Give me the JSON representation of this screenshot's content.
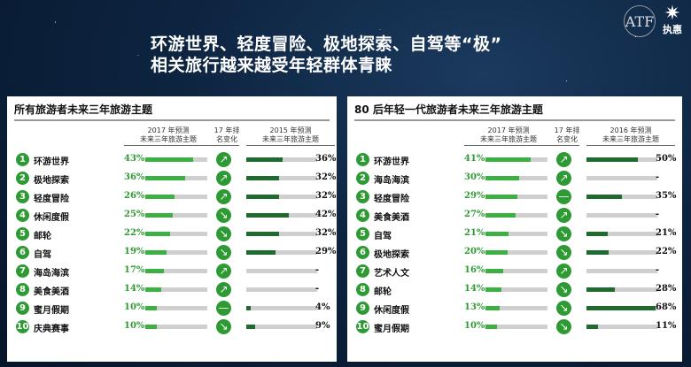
{
  "title": {
    "line1": "环游世界、轻度冒险、极地探索、自驾等“极”",
    "line2": "相关旅行越来越受年轻群体青睐"
  },
  "logo": {
    "atf": "ATF",
    "brand": "执惠",
    "star_icon": "star-icon"
  },
  "colors": {
    "accent": "#2e9a34",
    "bar_light": "#3cb043",
    "bar_dark": "#1f6a2e",
    "bar_bg": "#cfcfcf"
  },
  "left": {
    "heading": "所有旅游者未来三年旅游主题",
    "col1": "2017 年预测\n未来三年旅游主题",
    "col2": "17 年排\n名变化",
    "col3": "2015 年预测\n未来三年旅游主题",
    "rows": [
      {
        "num": "1",
        "name": "环游世界",
        "pct": "43%",
        "v": 43,
        "change": "up",
        "pct2": "36%",
        "v2": 36
      },
      {
        "num": "2",
        "name": "极地探索",
        "pct": "36%",
        "v": 36,
        "change": "up",
        "pct2": "32%",
        "v2": 32
      },
      {
        "num": "3",
        "name": "轻度冒险",
        "pct": "26%",
        "v": 26,
        "change": "up",
        "pct2": "32%",
        "v2": 32
      },
      {
        "num": "4",
        "name": "休闲度假",
        "pct": "25%",
        "v": 25,
        "change": "down",
        "pct2": "42%",
        "v2": 42
      },
      {
        "num": "5",
        "name": "邮轮",
        "pct": "22%",
        "v": 22,
        "change": "down",
        "pct2": "32%",
        "v2": 32
      },
      {
        "num": "6",
        "name": "自驾",
        "pct": "19%",
        "v": 19,
        "change": "down",
        "pct2": "29%",
        "v2": 29
      },
      {
        "num": "7",
        "name": "海岛海滨",
        "pct": "17%",
        "v": 17,
        "change": "up",
        "pct2": "-",
        "v2": 0
      },
      {
        "num": "8",
        "name": "美食美酒",
        "pct": "14%",
        "v": 14,
        "change": "up",
        "pct2": "-",
        "v2": 0
      },
      {
        "num": "9",
        "name": "蜜月假期",
        "pct": "10%",
        "v": 10,
        "change": "same",
        "pct2": "4%",
        "v2": 4
      },
      {
        "num": "10",
        "name": "庆典赛事",
        "pct": "10%",
        "v": 10,
        "change": "down",
        "pct2": "9%",
        "v2": 9
      }
    ]
  },
  "right": {
    "heading": "80 后年轻一代旅游者未来三年旅游主题",
    "col1": "2017 年预测\n未来三年旅游主题",
    "col2": "17 年排\n名变化",
    "col3": "2016 年预测\n未来三年旅游主题",
    "rows": [
      {
        "num": "1",
        "name": "环游世界",
        "pct": "41%",
        "v": 41,
        "change": "up",
        "pct2": "50%",
        "v2": 50
      },
      {
        "num": "2",
        "name": "海岛海滨",
        "pct": "30%",
        "v": 30,
        "change": "up",
        "pct2": "-",
        "v2": 0
      },
      {
        "num": "3",
        "name": "轻度冒险",
        "pct": "29%",
        "v": 29,
        "change": "same",
        "pct2": "35%",
        "v2": 35
      },
      {
        "num": "4",
        "name": "美食美酒",
        "pct": "27%",
        "v": 27,
        "change": "up",
        "pct2": "-",
        "v2": 0
      },
      {
        "num": "5",
        "name": "自驾",
        "pct": "21%",
        "v": 21,
        "change": "down",
        "pct2": "21%",
        "v2": 21
      },
      {
        "num": "6",
        "name": "极地探索",
        "pct": "20%",
        "v": 20,
        "change": "down",
        "pct2": "22%",
        "v2": 22
      },
      {
        "num": "7",
        "name": "艺术人文",
        "pct": "16%",
        "v": 16,
        "change": "up",
        "pct2": "-",
        "v2": 0
      },
      {
        "num": "8",
        "name": "邮轮",
        "pct": "14%",
        "v": 14,
        "change": "down",
        "pct2": "28%",
        "v2": 28
      },
      {
        "num": "9",
        "name": "休闲度假",
        "pct": "13%",
        "v": 13,
        "change": "down",
        "pct2": "68%",
        "v2": 68
      },
      {
        "num": "10",
        "name": "蜜月假期",
        "pct": "10%",
        "v": 10,
        "change": "down",
        "pct2": "11%",
        "v2": 11
      }
    ]
  }
}
